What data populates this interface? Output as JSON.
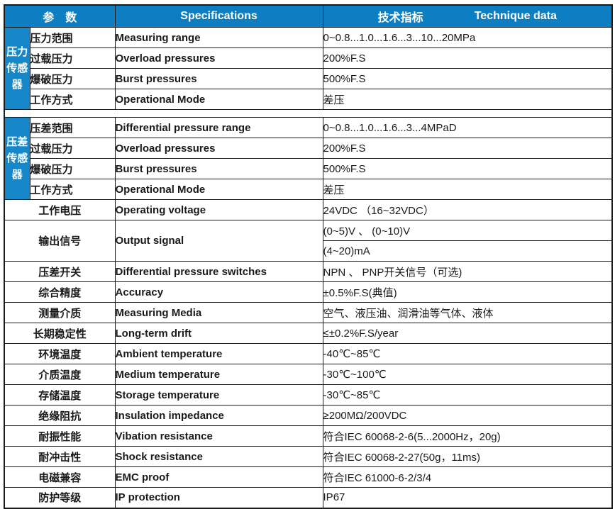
{
  "colors": {
    "header_bg": "#0e7ec3",
    "side_label_bg": "#1587c9",
    "border": "#1a1a1a",
    "header_text": "#ffffff"
  },
  "header": {
    "param": "参　数",
    "spec": "Specifications",
    "tech_cn": "技术指标",
    "tech_en": "Technique data"
  },
  "side_labels": {
    "pressure": "压力传感器",
    "differential": "压差传感器"
  },
  "section_pressure": [
    {
      "cn": "压力范围",
      "en": "Measuring range",
      "val": "0~0.8...1.0...1.6...3...10...20MPa"
    },
    {
      "cn": "过载压力",
      "en": "Overload pressures",
      "val": "200%F.S"
    },
    {
      "cn": "爆破压力",
      "en": "Burst pressures",
      "val": "500%F.S"
    },
    {
      "cn": "工作方式",
      "en": "Operational Mode",
      "val": "差压"
    }
  ],
  "section_differential": [
    {
      "cn": "压差范围",
      "en": "Differential pressure range",
      "val": "0~0.8...1.0...1.6...3...4MPaD"
    },
    {
      "cn": "过载压力",
      "en": "Overload pressures",
      "val": "200%F.S"
    },
    {
      "cn": "爆破压力",
      "en": "Burst pressures",
      "val": "500%F.S"
    },
    {
      "cn": "工作方式",
      "en": "Operational Mode",
      "val": "差压"
    }
  ],
  "general": [
    {
      "cn": "工作电压",
      "en": "Operating voltage",
      "val": "24VDC （16~32VDC）"
    },
    {
      "cn": "输出信号",
      "en": "Output signal",
      "val": "(0~5)V 、 (0~10)V",
      "val2": "(4~20)mA"
    },
    {
      "cn": "压差开关",
      "en": "Differential pressure switches",
      "val": "NPN 、 PNP开关信号（可选)"
    },
    {
      "cn": "综合精度",
      "en": "Accuracy",
      "val": "±0.5%F.S(典值)"
    },
    {
      "cn": "测量介质",
      "en": "Measuring Media",
      "val": "空气、液压油、润滑油等气体、液体"
    },
    {
      "cn": "长期稳定性",
      "en": "Long-term drift",
      "val": "≤±0.2%F.S/year"
    },
    {
      "cn": "环境温度",
      "en": "Ambient temperature",
      "val": "-40℃~85℃"
    },
    {
      "cn": "介质温度",
      "en": "Medium temperature",
      "val": "-30℃~100℃"
    },
    {
      "cn": "存储温度",
      "en": "Storage temperature",
      "val": "-30℃~85℃"
    },
    {
      "cn": "绝缘阻抗",
      "en": "Insulation impedance",
      "val": "≥200MΩ/200VDC"
    },
    {
      "cn": "耐振性能",
      "en": "Vibation resistance",
      "val": "符合IEC 60068-2-6(5...2000Hz，20g)"
    },
    {
      "cn": "耐冲击性",
      "en": "Shock  resistance",
      "val": "符合IEC 60068-2-27(50g，11ms)"
    },
    {
      "cn": "电磁兼容",
      "en": "EMC proof",
      "val": "符合IEC 61000-6-2/3/4"
    },
    {
      "cn": "防护等级",
      "en": "IP protection",
      "val": "IP67"
    }
  ]
}
